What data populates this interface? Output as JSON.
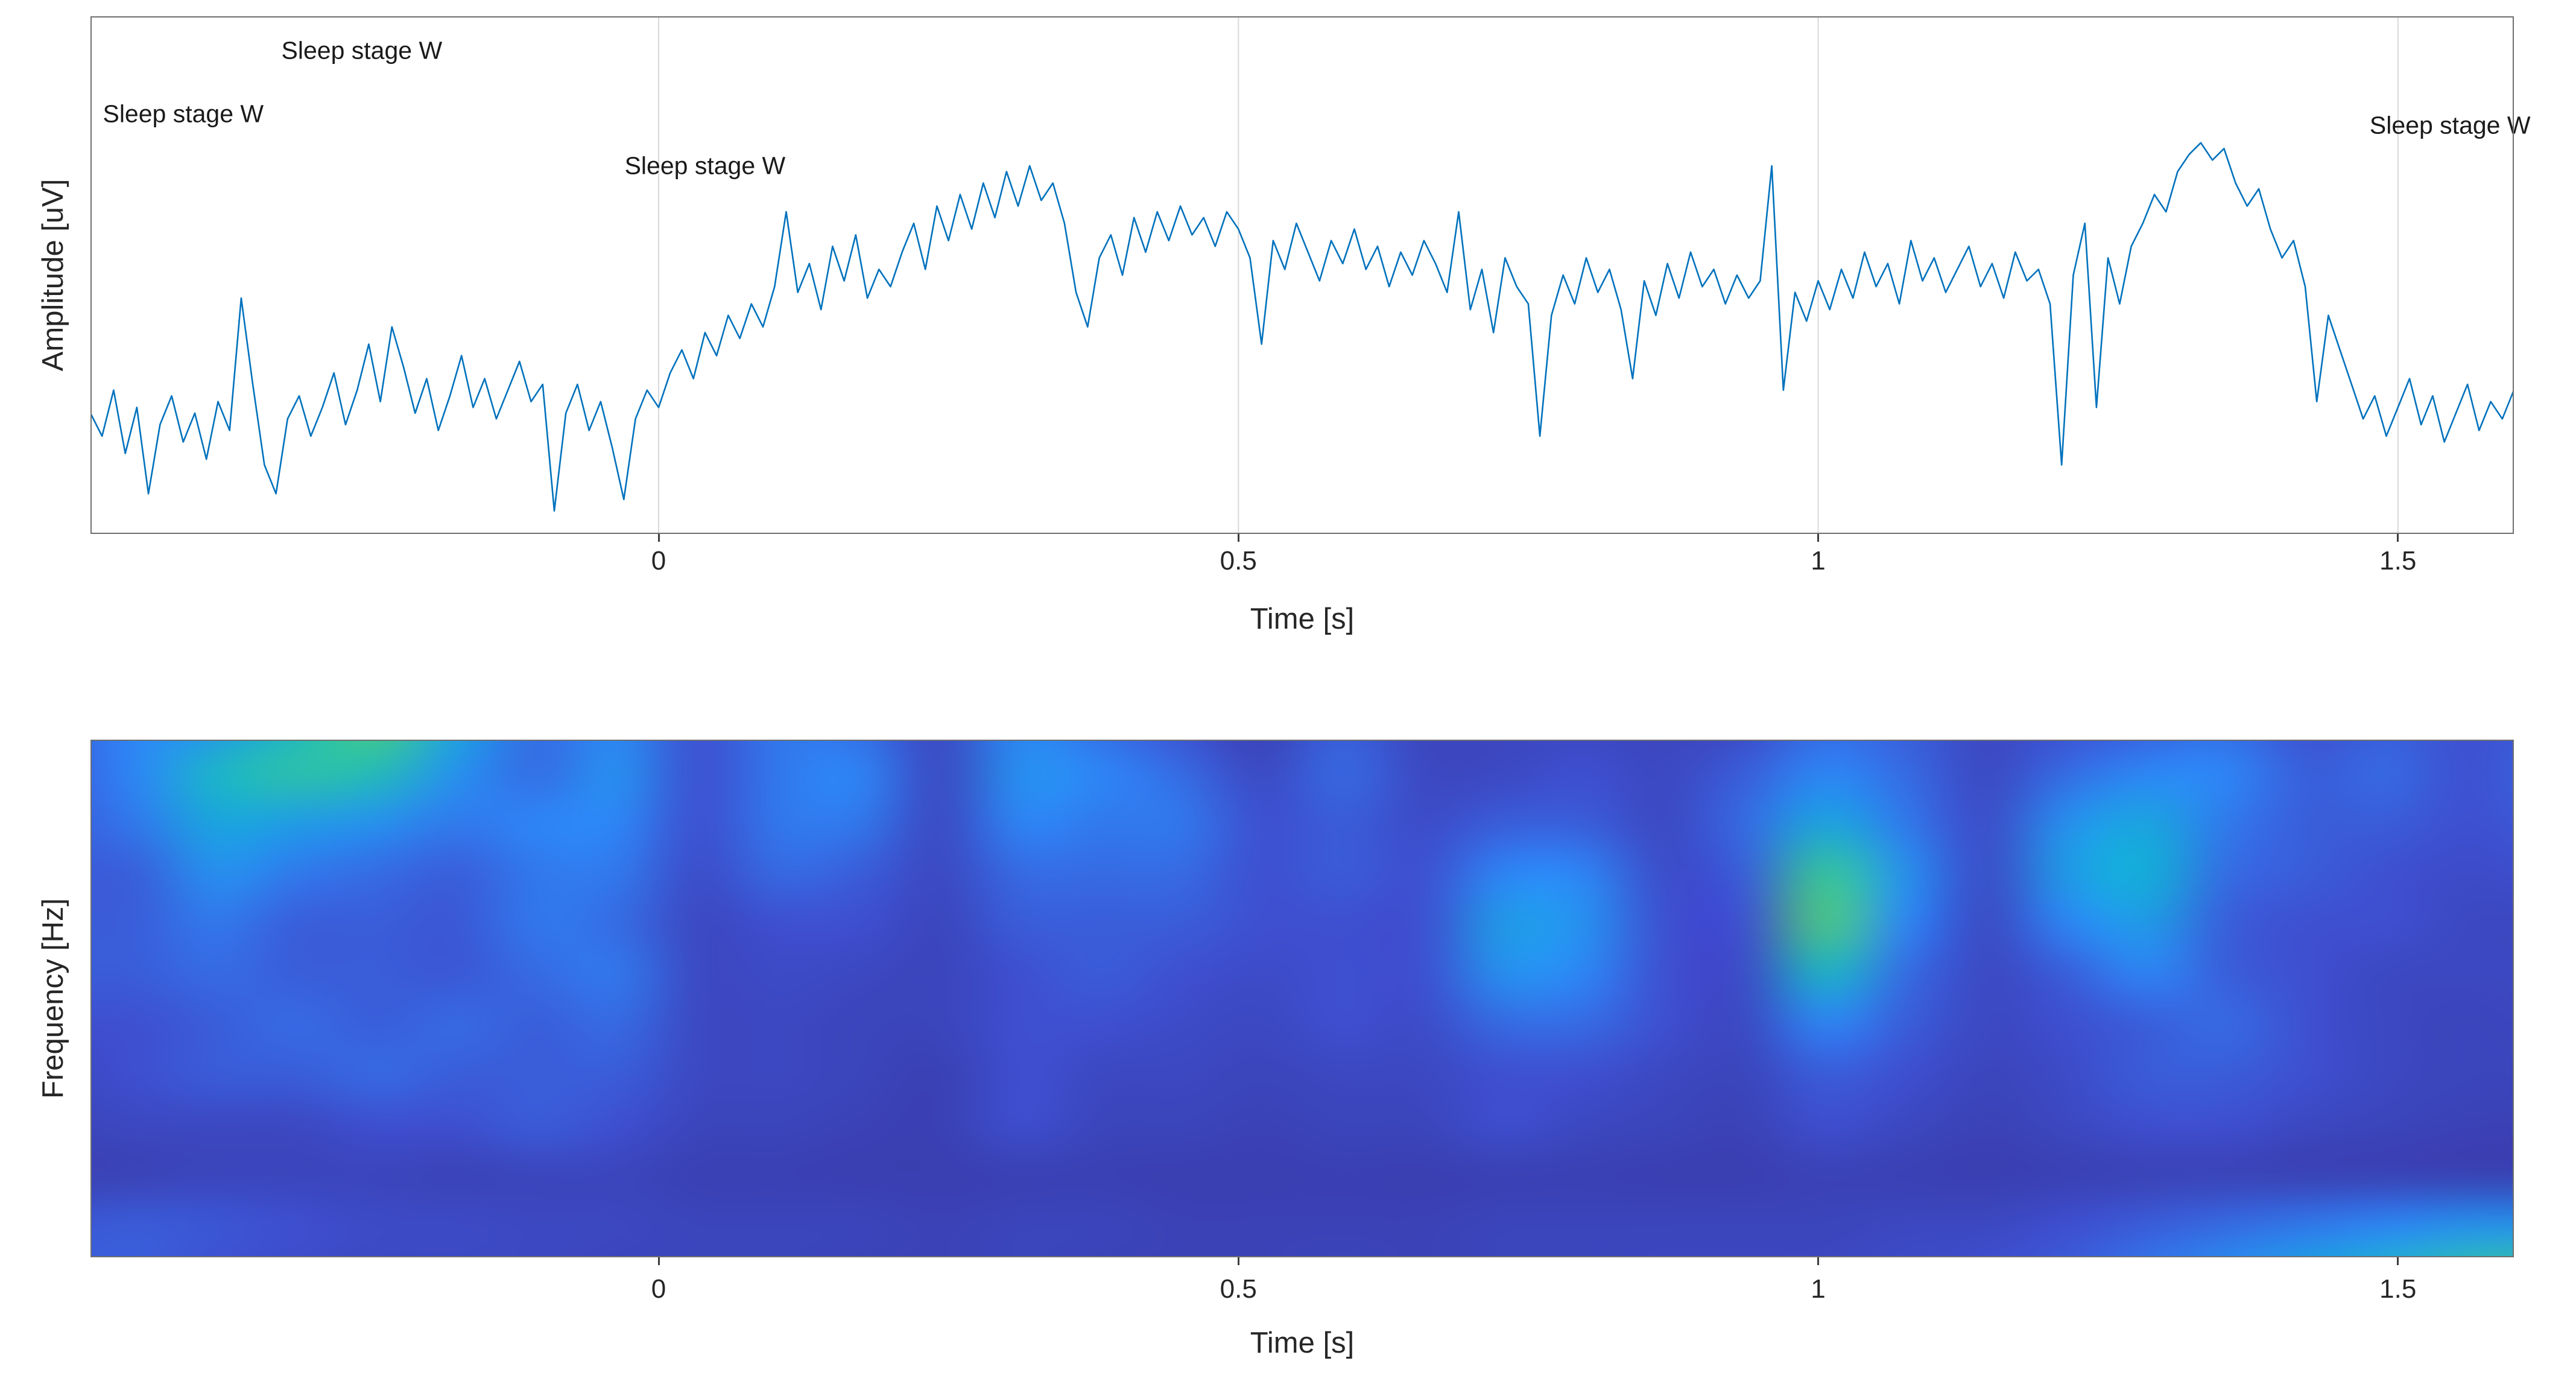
{
  "figure": {
    "background": "#ffffff"
  },
  "chart_data": [
    {
      "type": "line",
      "name": "eeg-amplitude-trace",
      "title": "",
      "xlabel": "Time [s]",
      "ylabel": "Amplitude [uV]",
      "xlim": [
        -0.49,
        1.6
      ],
      "ylim": [
        -30,
        60
      ],
      "xticks": [
        0,
        0.5,
        1,
        1.5
      ],
      "xtick_labels": [
        "0",
        "0.5",
        "1",
        "1.5"
      ],
      "grid": "vertical-only",
      "grid_color": "#d9d9d9",
      "line_color": "#0072BD",
      "annotations": [
        {
          "text": "Sleep stage W",
          "x": -0.41,
          "y": 43
        },
        {
          "text": "Sleep stage W",
          "x": -0.256,
          "y": 54
        },
        {
          "text": "Sleep stage W",
          "x": 0.04,
          "y": 34
        },
        {
          "text": "Sleep stage W",
          "x": 1.545,
          "y": 41
        }
      ],
      "x_start": -0.49,
      "x_step": 0.01,
      "y": [
        -9,
        -13,
        -5,
        -16,
        -8,
        -23,
        -11,
        -6,
        -14,
        -9,
        -17,
        -7,
        -12,
        11,
        -4,
        -18,
        -23,
        -10,
        -6,
        -13,
        -8,
        -2,
        -11,
        -5,
        3,
        -7,
        6,
        -1,
        -9,
        -3,
        -12,
        -6,
        1,
        -8,
        -3,
        -10,
        -5,
        0,
        -7,
        -4,
        -26,
        -9,
        -4,
        -12,
        -7,
        -15,
        -24,
        -10,
        -5,
        -8,
        -2,
        2,
        -3,
        5,
        1,
        8,
        4,
        10,
        6,
        13,
        26,
        12,
        17,
        9,
        20,
        14,
        22,
        11,
        16,
        13,
        19,
        24,
        16,
        27,
        21,
        29,
        23,
        31,
        25,
        33,
        27,
        34,
        28,
        31,
        24,
        12,
        6,
        18,
        22,
        15,
        25,
        19,
        26,
        21,
        27,
        22,
        25,
        20,
        26,
        23,
        18,
        3,
        21,
        16,
        24,
        19,
        14,
        21,
        17,
        23,
        16,
        20,
        13,
        19,
        15,
        21,
        17,
        12,
        26,
        9,
        16,
        5,
        18,
        13,
        10,
        -13,
        8,
        15,
        10,
        18,
        12,
        16,
        9,
        -3,
        14,
        8,
        17,
        11,
        19,
        13,
        16,
        10,
        15,
        11,
        14,
        34,
        -5,
        12,
        7,
        14,
        9,
        16,
        11,
        19,
        13,
        17,
        10,
        21,
        14,
        18,
        12,
        16,
        20,
        13,
        17,
        11,
        19,
        14,
        16,
        10,
        -18,
        15,
        24,
        -8,
        18,
        10,
        20,
        24,
        29,
        26,
        33,
        36,
        38,
        35,
        37,
        31,
        27,
        30,
        23,
        18,
        21,
        13,
        -7,
        8,
        2,
        -4,
        -10,
        -6,
        -13,
        -8,
        -3,
        -11,
        -6,
        -14,
        -9,
        -4,
        -12,
        -7,
        -10,
        -5
      ]
    },
    {
      "type": "heatmap",
      "name": "time-frequency-spectrogram",
      "title": "",
      "xlabel": "Time [s]",
      "ylabel": "Frequency [Hz]",
      "xlim": [
        -0.49,
        1.6
      ],
      "xticks": [
        0,
        0.5,
        1,
        1.5
      ],
      "xtick_labels": [
        "0",
        "0.5",
        "1",
        "1.5"
      ],
      "legend": "none",
      "colormap": "parula-low-range",
      "colormap_stops": [
        [
          0,
          "#352a87"
        ],
        [
          0.25,
          "#3e4fd0"
        ],
        [
          0.45,
          "#2d87f7"
        ],
        [
          0.65,
          "#12b1d6"
        ],
        [
          0.85,
          "#37c897"
        ],
        [
          1,
          "#7dcd4e"
        ]
      ],
      "values": [
        [
          0.3,
          0.45,
          0.5,
          0.7,
          0.9,
          0.6,
          0.35,
          0.45,
          0.25,
          0.4,
          0.35,
          0.2,
          0.45,
          0.35,
          0.25,
          0.15,
          0.3,
          0.18,
          0.2,
          0.2,
          0.18,
          0.2,
          0.35,
          0.3,
          0.2,
          0.25,
          0.3,
          0.35,
          0.25,
          0.3,
          0.25,
          0.3
        ],
        [
          0.3,
          0.45,
          0.7,
          0.8,
          0.75,
          0.5,
          0.35,
          0.5,
          0.25,
          0.4,
          0.45,
          0.2,
          0.5,
          0.45,
          0.35,
          0.2,
          0.35,
          0.2,
          0.2,
          0.25,
          0.2,
          0.3,
          0.45,
          0.35,
          0.2,
          0.35,
          0.45,
          0.45,
          0.3,
          0.35,
          0.25,
          0.35
        ],
        [
          0.3,
          0.4,
          0.6,
          0.55,
          0.5,
          0.4,
          0.45,
          0.45,
          0.25,
          0.4,
          0.4,
          0.2,
          0.45,
          0.4,
          0.4,
          0.25,
          0.3,
          0.22,
          0.3,
          0.3,
          0.2,
          0.35,
          0.6,
          0.4,
          0.22,
          0.5,
          0.6,
          0.4,
          0.3,
          0.3,
          0.25,
          0.3
        ],
        [
          0.3,
          0.3,
          0.5,
          0.4,
          0.35,
          0.3,
          0.4,
          0.4,
          0.22,
          0.35,
          0.3,
          0.2,
          0.35,
          0.35,
          0.35,
          0.25,
          0.3,
          0.25,
          0.45,
          0.45,
          0.22,
          0.3,
          0.85,
          0.5,
          0.22,
          0.55,
          0.65,
          0.35,
          0.3,
          0.25,
          0.22,
          0.25
        ],
        [
          0.3,
          0.3,
          0.4,
          0.3,
          0.3,
          0.28,
          0.4,
          0.35,
          0.2,
          0.25,
          0.25,
          0.18,
          0.3,
          0.3,
          0.3,
          0.25,
          0.25,
          0.25,
          0.55,
          0.5,
          0.25,
          0.25,
          0.9,
          0.45,
          0.2,
          0.45,
          0.55,
          0.3,
          0.25,
          0.25,
          0.2,
          0.2
        ],
        [
          0.3,
          0.3,
          0.35,
          0.3,
          0.3,
          0.28,
          0.35,
          0.4,
          0.2,
          0.22,
          0.2,
          0.18,
          0.25,
          0.3,
          0.25,
          0.22,
          0.25,
          0.25,
          0.5,
          0.45,
          0.25,
          0.22,
          0.7,
          0.35,
          0.2,
          0.3,
          0.45,
          0.3,
          0.25,
          0.2,
          0.2,
          0.2
        ],
        [
          0.25,
          0.25,
          0.3,
          0.35,
          0.3,
          0.35,
          0.3,
          0.35,
          0.2,
          0.2,
          0.18,
          0.18,
          0.25,
          0.25,
          0.22,
          0.2,
          0.25,
          0.22,
          0.35,
          0.35,
          0.25,
          0.2,
          0.45,
          0.3,
          0.2,
          0.25,
          0.3,
          0.35,
          0.25,
          0.2,
          0.18,
          0.2
        ],
        [
          0.2,
          0.25,
          0.3,
          0.3,
          0.35,
          0.3,
          0.3,
          0.3,
          0.2,
          0.2,
          0.18,
          0.15,
          0.25,
          0.2,
          0.2,
          0.18,
          0.2,
          0.2,
          0.25,
          0.25,
          0.2,
          0.18,
          0.3,
          0.25,
          0.18,
          0.22,
          0.3,
          0.3,
          0.25,
          0.2,
          0.18,
          0.18
        ],
        [
          0.18,
          0.2,
          0.2,
          0.2,
          0.25,
          0.25,
          0.3,
          0.25,
          0.18,
          0.18,
          0.16,
          0.15,
          0.25,
          0.18,
          0.18,
          0.16,
          0.18,
          0.18,
          0.25,
          0.2,
          0.18,
          0.16,
          0.25,
          0.2,
          0.16,
          0.2,
          0.25,
          0.25,
          0.2,
          0.18,
          0.16,
          0.16
        ],
        [
          0.15,
          0.16,
          0.18,
          0.18,
          0.18,
          0.16,
          0.18,
          0.18,
          0.15,
          0.15,
          0.14,
          0.14,
          0.15,
          0.15,
          0.14,
          0.14,
          0.15,
          0.14,
          0.15,
          0.15,
          0.14,
          0.14,
          0.16,
          0.15,
          0.14,
          0.15,
          0.16,
          0.16,
          0.15,
          0.15,
          0.14,
          0.14
        ],
        [
          0.28,
          0.3,
          0.28,
          0.25,
          0.22,
          0.22,
          0.2,
          0.2,
          0.18,
          0.18,
          0.18,
          0.16,
          0.18,
          0.18,
          0.16,
          0.16,
          0.16,
          0.16,
          0.18,
          0.18,
          0.18,
          0.18,
          0.18,
          0.2,
          0.2,
          0.25,
          0.3,
          0.35,
          0.4,
          0.45,
          0.5,
          0.5
        ],
        [
          0.3,
          0.3,
          0.25,
          0.22,
          0.2,
          0.2,
          0.2,
          0.18,
          0.18,
          0.18,
          0.16,
          0.16,
          0.18,
          0.16,
          0.16,
          0.16,
          0.18,
          0.16,
          0.18,
          0.18,
          0.2,
          0.2,
          0.2,
          0.22,
          0.25,
          0.3,
          0.4,
          0.5,
          0.6,
          0.7,
          0.8,
          0.85
        ]
      ]
    }
  ]
}
